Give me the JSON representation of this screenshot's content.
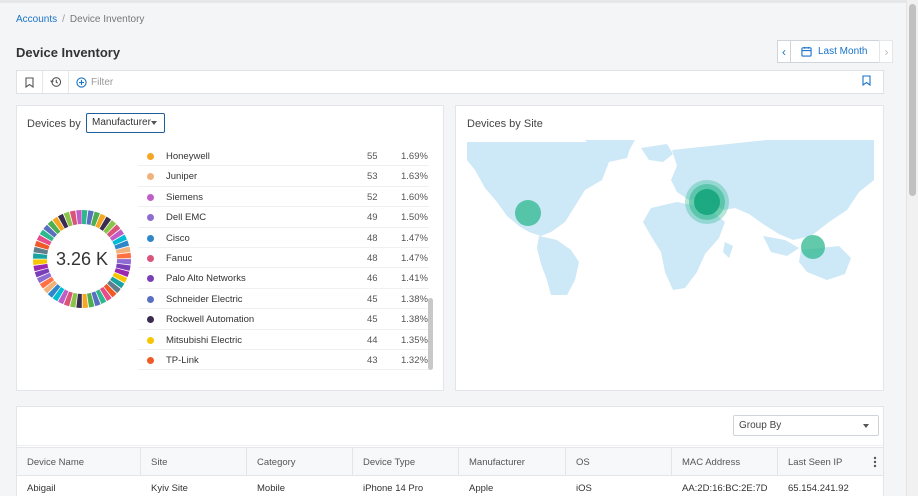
{
  "breadcrumb": {
    "root": "Accounts",
    "separator": "/",
    "current": "Device Inventory"
  },
  "page": {
    "title": "Device Inventory"
  },
  "date_range": {
    "label": "Last Month"
  },
  "filter": {
    "placeholder": "Filter"
  },
  "devices_by": {
    "title": "Devices by",
    "selector": "Manufacturer",
    "total": "3.26 K",
    "manufacturers": [
      {
        "name": "Honeywell",
        "count": "55",
        "pct": "1.69%",
        "color": "#f5a623"
      },
      {
        "name": "Juniper",
        "count": "53",
        "pct": "1.63%",
        "color": "#f0b27a"
      },
      {
        "name": "Siemens",
        "count": "52",
        "pct": "1.60%",
        "color": "#c05ec8"
      },
      {
        "name": "Dell EMC",
        "count": "49",
        "pct": "1.50%",
        "color": "#8e6bd1"
      },
      {
        "name": "Cisco",
        "count": "48",
        "pct": "1.47%",
        "color": "#2f86c8"
      },
      {
        "name": "Fanuc",
        "count": "48",
        "pct": "1.47%",
        "color": "#d9537a"
      },
      {
        "name": "Palo Alto Networks",
        "count": "46",
        "pct": "1.41%",
        "color": "#7a3fb8"
      },
      {
        "name": "Schneider Electric",
        "count": "45",
        "pct": "1.38%",
        "color": "#5a6fc0"
      },
      {
        "name": "Rockwell Automation",
        "count": "45",
        "pct": "1.38%",
        "color": "#3b2b4f"
      },
      {
        "name": "Mitsubishi Electric",
        "count": "44",
        "pct": "1.35%",
        "color": "#f7c600"
      },
      {
        "name": "TP-Link",
        "count": "43",
        "pct": "1.32%",
        "color": "#f05a28"
      }
    ]
  },
  "devices_by_site": {
    "title": "Devices by Site"
  },
  "table": {
    "group_by": "Group By",
    "columns": [
      "Device Name",
      "Site",
      "Category",
      "Device Type",
      "Manufacturer",
      "OS",
      "MAC Address",
      "Last Seen IP"
    ],
    "rows": [
      [
        "Abigail",
        "Kyiv Site",
        "Mobile",
        "iPhone 14 Pro",
        "Apple",
        "iOS",
        "AA:2D:16:BC:2E:7D",
        "65.154.241.92"
      ]
    ]
  },
  "colors": {
    "accent": "#1a73c8",
    "map_land": "#cde8f6",
    "site_bubble": "#2eb88e"
  }
}
